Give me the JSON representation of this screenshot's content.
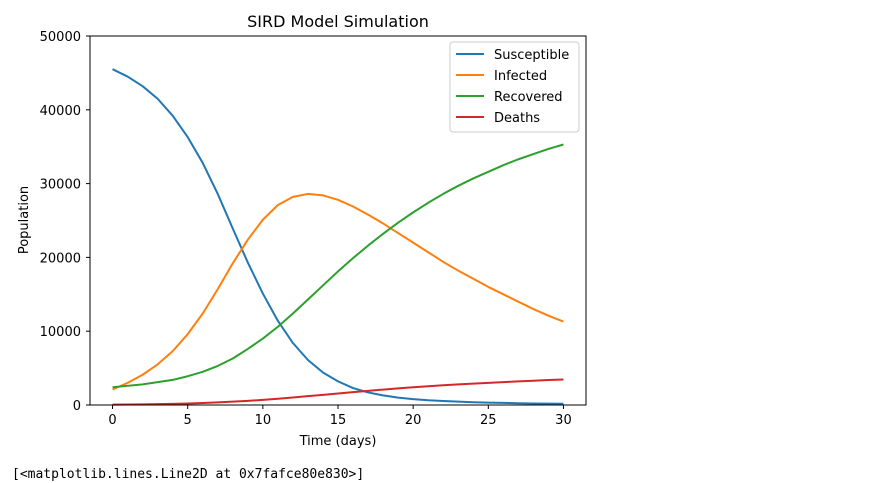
{
  "chart_data": {
    "type": "line",
    "title": "SIRD Model Simulation",
    "xlabel": "Time (days)",
    "ylabel": "Population",
    "xlim": [
      -1.5,
      31.5
    ],
    "ylim": [
      0,
      50000
    ],
    "xticks": [
      0,
      5,
      10,
      15,
      20,
      25,
      30
    ],
    "yticks": [
      0,
      10000,
      20000,
      30000,
      40000,
      50000
    ],
    "grid": false,
    "legend": "top-right",
    "x": [
      0,
      1,
      2,
      3,
      4,
      5,
      6,
      7,
      8,
      9,
      10,
      11,
      12,
      13,
      14,
      15,
      16,
      17,
      18,
      19,
      20,
      21,
      22,
      23,
      24,
      25,
      26,
      27,
      28,
      29,
      30
    ],
    "series": [
      {
        "name": "Susceptible",
        "color": "#1f77b4",
        "values": [
          45500,
          44500,
          43200,
          41500,
          39200,
          36300,
          32800,
          28600,
          23900,
          19300,
          15100,
          11400,
          8400,
          6100,
          4400,
          3200,
          2300,
          1700,
          1300,
          1000,
          800,
          650,
          550,
          450,
          380,
          320,
          280,
          240,
          210,
          190,
          170
        ]
      },
      {
        "name": "Infected",
        "color": "#ff7f0e",
        "values": [
          2100,
          3000,
          4100,
          5500,
          7300,
          9600,
          12400,
          15700,
          19200,
          22400,
          25100,
          27100,
          28200,
          28600,
          28400,
          27800,
          26900,
          25800,
          24600,
          23300,
          22000,
          20700,
          19400,
          18200,
          17100,
          16000,
          15000,
          14000,
          13000,
          12100,
          11300
        ]
      },
      {
        "name": "Recovered",
        "color": "#2ca02c",
        "values": [
          2400,
          2600,
          2800,
          3100,
          3400,
          3900,
          4500,
          5300,
          6300,
          7600,
          9000,
          10600,
          12400,
          14300,
          16200,
          18100,
          19900,
          21600,
          23200,
          24700,
          26100,
          27400,
          28600,
          29700,
          30700,
          31600,
          32500,
          33300,
          34000,
          34700,
          35300
        ]
      },
      {
        "name": "Deaths",
        "color": "#d62728",
        "values": [
          50,
          70,
          90,
          120,
          160,
          210,
          270,
          350,
          450,
          560,
          700,
          850,
          1020,
          1200,
          1380,
          1560,
          1740,
          1920,
          2090,
          2250,
          2400,
          2540,
          2670,
          2790,
          2900,
          3000,
          3100,
          3200,
          3290,
          3380,
          3450
        ]
      }
    ]
  },
  "repr_output": "[<matplotlib.lines.Line2D at 0x7fafce80e830>]"
}
